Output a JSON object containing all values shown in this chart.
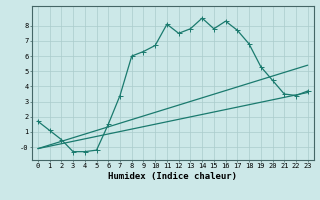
{
  "xlabel": "Humidex (Indice chaleur)",
  "background_color": "#cce8e8",
  "grid_color": "#aacccc",
  "line_color": "#1a7a6e",
  "xlim": [
    -0.5,
    23.5
  ],
  "ylim": [
    -0.85,
    9.3
  ],
  "xticks": [
    0,
    1,
    2,
    3,
    4,
    5,
    6,
    7,
    8,
    9,
    10,
    11,
    12,
    13,
    14,
    15,
    16,
    17,
    18,
    19,
    20,
    21,
    22,
    23
  ],
  "yticks": [
    0,
    1,
    2,
    3,
    4,
    5,
    6,
    7,
    8
  ],
  "ytick_labels": [
    "-0",
    "1",
    "2",
    "3",
    "4",
    "5",
    "6",
    "7",
    "8"
  ],
  "line1_x": [
    0,
    1,
    2,
    3,
    4,
    5,
    6,
    7,
    8,
    9,
    10,
    11,
    12,
    13,
    14,
    15,
    16,
    17,
    18,
    19,
    20,
    21,
    22,
    23
  ],
  "line1_y": [
    1.7,
    1.1,
    0.5,
    -0.3,
    -0.3,
    -0.2,
    1.5,
    3.4,
    6.0,
    6.3,
    6.7,
    8.1,
    7.5,
    7.8,
    8.5,
    7.8,
    8.3,
    7.7,
    6.8,
    5.3,
    4.4,
    3.5,
    3.4,
    3.7
  ],
  "line2_x": [
    0,
    23
  ],
  "line2_y": [
    -0.1,
    3.6
  ],
  "line3_x": [
    0,
    23
  ],
  "line3_y": [
    -0.1,
    5.4
  ],
  "tick_font_size": 5.0,
  "xlabel_font_size": 6.5,
  "marker_size": 2.0,
  "line_width": 0.9
}
